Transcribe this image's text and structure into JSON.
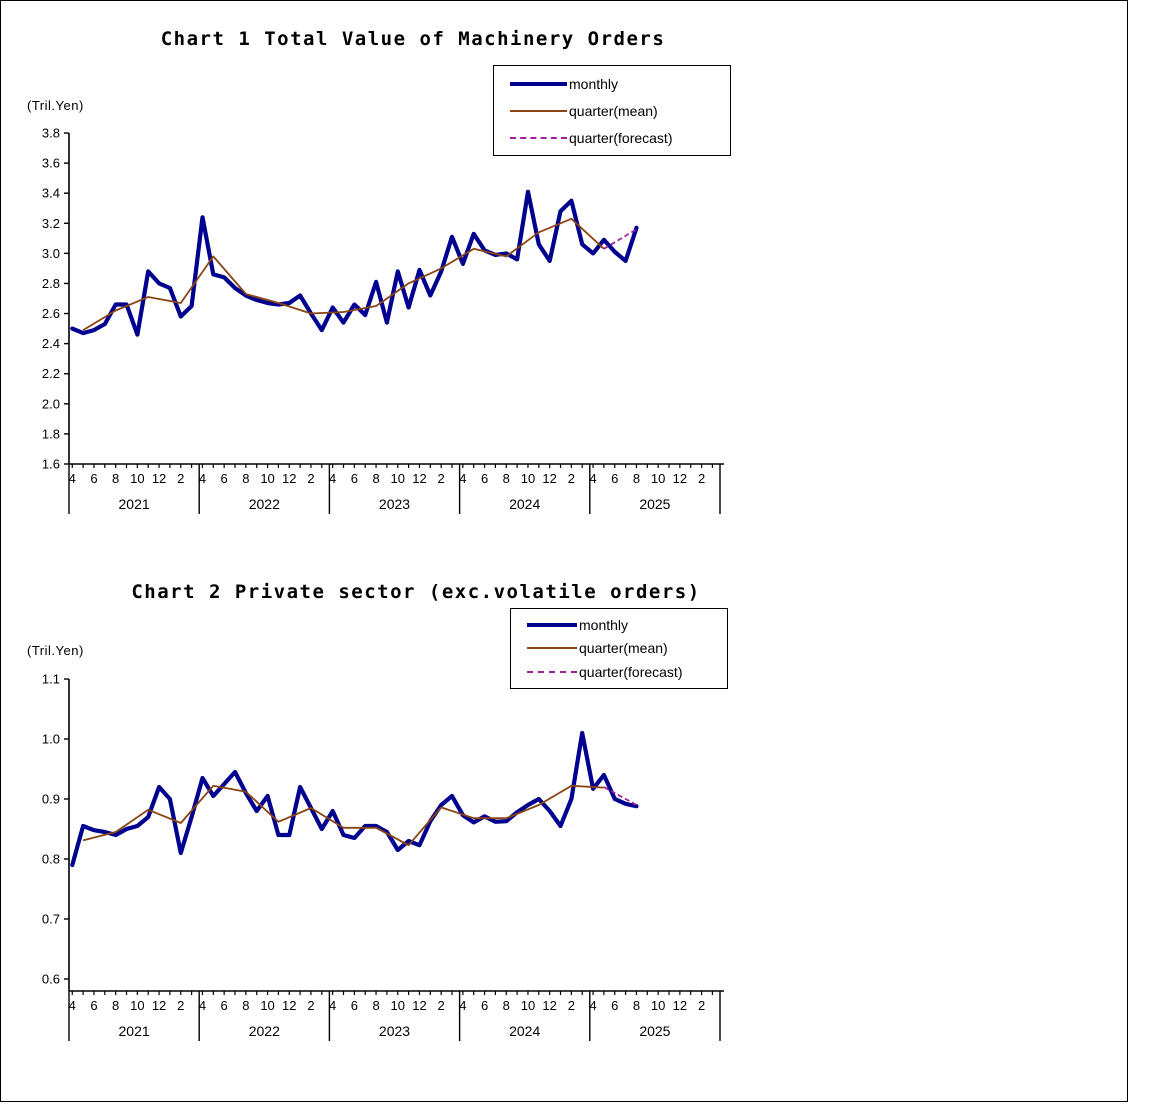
{
  "page": {
    "background": "#ffffff",
    "frame_border": "#000000"
  },
  "legend_labels": {
    "monthly": "monthly",
    "mean": "quarter(mean)",
    "forecast": "quarter(forecast)"
  },
  "colors": {
    "monthly": "#000090",
    "quarter_mean": "#8B4513",
    "quarter_forecast": "#A0209A",
    "axis": "#000000"
  },
  "chart_data": [
    {
      "type": "line",
      "title": "Chart 1 Total Value of Machinery Orders",
      "unit_label": "(Tril.Yen)",
      "ylim": [
        1.6,
        3.8
      ],
      "ytick_step": 0.2,
      "y_tick_labels": [
        "3.8",
        "3.6",
        "3.4",
        "3.2",
        "3.0",
        "2.8",
        "2.6",
        "2.4",
        "2.2",
        "2.0",
        "1.8",
        "1.6"
      ],
      "x_month_labels": [
        "4",
        "6",
        "8",
        "10",
        "12",
        "2"
      ],
      "year_labels": [
        "2021",
        "2022",
        "2023",
        "2024",
        "2025"
      ],
      "x_start_month": "April 2021",
      "grid": false,
      "legend_position": "top-right",
      "series": [
        {
          "role": "monthly",
          "name": "monthly",
          "color": "#000090",
          "width": 4.2,
          "values": [
            2.5,
            2.47,
            2.49,
            2.53,
            2.66,
            2.66,
            2.46,
            2.88,
            2.8,
            2.77,
            2.58,
            2.65,
            3.24,
            2.86,
            2.84,
            2.77,
            2.72,
            2.69,
            2.67,
            2.66,
            2.67,
            2.72,
            2.6,
            2.49,
            2.64,
            2.54,
            2.66,
            2.59,
            2.81,
            2.54,
            2.88,
            2.64,
            2.89,
            2.72,
            2.88,
            3.11,
            2.93,
            3.13,
            3.02,
            2.99,
            3.0,
            2.96,
            3.41,
            3.06,
            2.95,
            3.28,
            3.35,
            3.06,
            3.0,
            3.09,
            3.01,
            2.95,
            3.17
          ]
        },
        {
          "role": "quarter",
          "name": "quarter(mean)",
          "color": "#8B4513",
          "width": 1.8,
          "values": [
            2.49,
            2.62,
            2.71,
            2.67,
            2.98,
            2.73,
            2.67,
            2.6,
            2.61,
            2.65,
            2.8,
            2.9,
            3.03,
            2.98,
            3.14,
            3.23,
            3.03
          ]
        },
        {
          "role": "forecast",
          "name": "quarter(forecast)",
          "color": "#A0209A",
          "width": 1.8,
          "dash": "5,3",
          "values": [
            3.03,
            3.16
          ]
        }
      ]
    },
    {
      "type": "line",
      "title": "Chart 2 Private sector (exc.volatile orders)",
      "unit_label": "(Tril.Yen)",
      "ylim": [
        0.6,
        1.1
      ],
      "ytick_step": 0.1,
      "y_tick_labels": [
        "1.1",
        "1.0",
        "0.9",
        "0.8",
        "0.7",
        "0.6"
      ],
      "x_month_labels": [
        "4",
        "6",
        "8",
        "10",
        "12",
        "2"
      ],
      "year_labels": [
        "2021",
        "2022",
        "2023",
        "2024",
        "2025"
      ],
      "x_start_month": "April 2021",
      "grid": false,
      "legend_position": "top-right",
      "series": [
        {
          "role": "monthly",
          "name": "monthly",
          "color": "#000090",
          "width": 4.2,
          "values": [
            0.79,
            0.855,
            0.848,
            0.845,
            0.84,
            0.85,
            0.855,
            0.87,
            0.92,
            0.9,
            0.81,
            0.87,
            0.935,
            0.905,
            0.925,
            0.945,
            0.91,
            0.88,
            0.905,
            0.84,
            0.84,
            0.92,
            0.885,
            0.85,
            0.88,
            0.84,
            0.835,
            0.855,
            0.855,
            0.845,
            0.815,
            0.83,
            0.823,
            0.863,
            0.89,
            0.905,
            0.873,
            0.861,
            0.871,
            0.862,
            0.863,
            0.878,
            0.89,
            0.9,
            0.88,
            0.855,
            0.9,
            1.01,
            0.917,
            0.94,
            0.9,
            0.892,
            0.888
          ]
        },
        {
          "role": "quarter",
          "name": "quarter(mean)",
          "color": "#8B4513",
          "width": 1.8,
          "values": [
            0.831,
            0.845,
            0.882,
            0.86,
            0.922,
            0.912,
            0.862,
            0.885,
            0.852,
            0.852,
            0.823,
            0.886,
            0.868,
            0.868,
            0.89,
            0.922,
            0.919
          ]
        },
        {
          "role": "forecast",
          "name": "quarter(forecast)",
          "color": "#A0209A",
          "width": 1.8,
          "dash": "5,3",
          "values": [
            0.92,
            0.89
          ]
        }
      ]
    }
  ]
}
